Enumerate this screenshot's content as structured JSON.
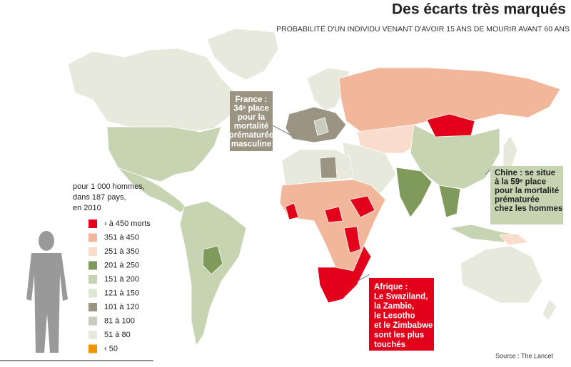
{
  "title": "Des écarts très marqués",
  "subtitle": "PROBABILITÉ D'UN INDIVIDU VENANT D'AVOIR 15 ANS DE MOURIR AVANT 60 ANS",
  "legend": {
    "heading": [
      "pour 1 000 hommes,",
      "dans 187 pays,",
      "en 2010"
    ],
    "items": [
      {
        "label": "› à 450 morts",
        "color": "#e2001a"
      },
      {
        "label": "351 à 450",
        "color": "#f2b79a"
      },
      {
        "label": "251 à 350",
        "color": "#f9dccb"
      },
      {
        "label": "201 à 250",
        "color": "#7f9a5a"
      },
      {
        "label": "151 à 200",
        "color": "#c6d4b2"
      },
      {
        "label": "121 à 150",
        "color": "#dfe7d3"
      },
      {
        "label": "101 à 120",
        "color": "#9b9482"
      },
      {
        "label": "81 à 100",
        "color": "#c9cbbd"
      },
      {
        "label": "51 à 80",
        "color": "#e6e9dc"
      },
      {
        "label": "‹ 50",
        "color": "#f39200"
      }
    ]
  },
  "callouts": {
    "france": [
      "France :",
      "34ᵉ place",
      "pour la",
      "mortalité",
      "prématurée",
      "masculine"
    ],
    "chine": [
      "Chine : se situe",
      "à la  59ᵉ place",
      "pour la mortalité",
      "prématurée",
      "chez les hommes"
    ],
    "afrique": [
      "Afrique :",
      "Le Swaziland,",
      "la Zambie,",
      "le Lesotho",
      "et le Zimbabwe",
      "sont les plus",
      "touchés"
    ]
  },
  "source": "Source : The Lancet"
}
